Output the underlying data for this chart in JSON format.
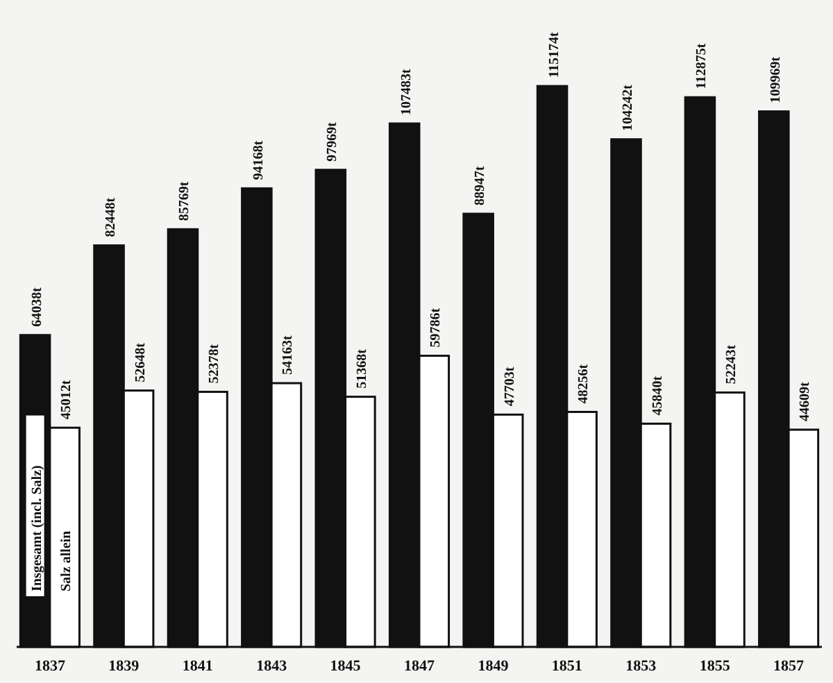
{
  "chart_data": {
    "type": "bar",
    "categories": [
      "1837",
      "1839",
      "1841",
      "1843",
      "1845",
      "1847",
      "1849",
      "1851",
      "1853",
      "1855",
      "1857"
    ],
    "series": [
      {
        "name": "Insgesamt (incl. Salz)",
        "color": "#111111",
        "values": [
          64038,
          82448,
          85769,
          94168,
          97969,
          107483,
          88947,
          115174,
          104242,
          112875,
          109969
        ],
        "value_labels": [
          "64038t",
          "82448t",
          "85769t",
          "94168t",
          "97969t",
          "107483t",
          "88947t",
          "115174t",
          "104242t",
          "112875t",
          "109969t"
        ]
      },
      {
        "name": "Salz allein",
        "color": "#ffffff",
        "values": [
          45012,
          52648,
          52378,
          54163,
          51368,
          59786,
          47703,
          48256,
          45840,
          52243,
          44609
        ],
        "value_labels": [
          "45012t",
          "52648t",
          "52378t",
          "54163t",
          "51368t",
          "59786t",
          "47703t",
          "48256t",
          "45840t",
          "52243t",
          "44609t"
        ]
      }
    ]
  }
}
